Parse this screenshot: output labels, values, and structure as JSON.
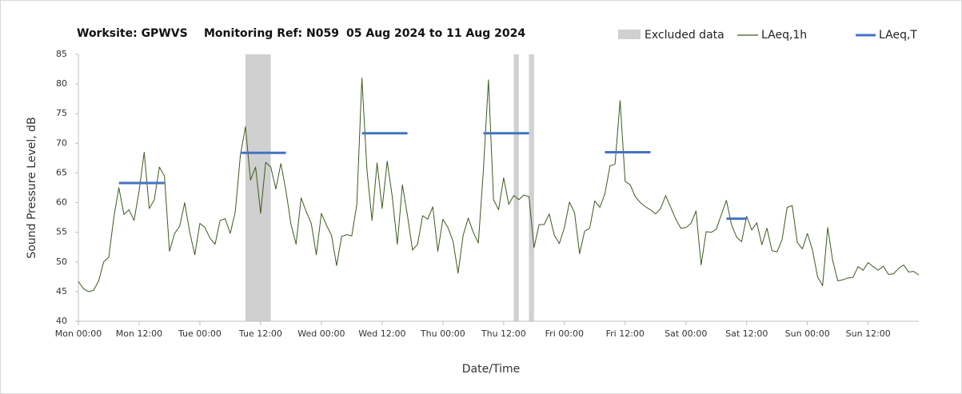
{
  "chart_data": {
    "type": "line",
    "title_parts": [
      "Worksite: GPWVS",
      "Monitoring Ref: N059",
      "05 Aug 2024 to 11 Aug 2024"
    ],
    "xlabel": "Date/Time",
    "ylabel": "Sound Pressure Level, dB",
    "xlim": [
      0,
      166
    ],
    "xticks": [
      {
        "value": 0,
        "label": "Mon 00:00"
      },
      {
        "value": 12,
        "label": "Mon 12:00"
      },
      {
        "value": 24,
        "label": "Tue 00:00"
      },
      {
        "value": 36,
        "label": "Tue 12:00"
      },
      {
        "value": 48,
        "label": "Wed 00:00"
      },
      {
        "value": 60,
        "label": "Wed 12:00"
      },
      {
        "value": 72,
        "label": "Thu 00:00"
      },
      {
        "value": 84,
        "label": "Thu 12:00"
      },
      {
        "value": 96,
        "label": "Fri 00:00"
      },
      {
        "value": 108,
        "label": "Fri 12:00"
      },
      {
        "value": 120,
        "label": "Sat 00:00"
      },
      {
        "value": 132,
        "label": "Sat 12:00"
      },
      {
        "value": 144,
        "label": "Sun 00:00"
      },
      {
        "value": 156,
        "label": "Sun 12:00"
      }
    ],
    "ylim": [
      40,
      85
    ],
    "yticks": [
      40,
      45,
      50,
      55,
      60,
      65,
      70,
      75,
      80,
      85
    ],
    "grid": false,
    "series": [
      {
        "name": "LAeq,1h",
        "color": "#3d5a1e",
        "x": [
          0,
          1,
          2,
          3,
          4,
          5,
          6,
          7,
          8,
          9,
          10,
          11,
          12,
          13,
          14,
          15,
          16,
          17,
          18,
          19,
          20,
          21,
          22,
          23,
          24,
          25,
          26,
          27,
          28,
          29,
          30,
          31,
          32,
          33,
          34,
          35,
          36,
          37,
          38,
          39,
          40,
          41,
          42,
          43,
          44,
          45,
          46,
          47,
          48,
          49,
          50,
          51,
          52,
          53,
          54,
          55,
          56,
          57,
          58,
          59,
          60,
          61,
          62,
          63,
          64,
          65,
          66,
          67,
          68,
          69,
          70,
          71,
          72,
          73,
          74,
          75,
          76,
          77,
          78,
          79,
          80,
          81,
          82,
          83,
          84,
          85,
          86,
          87,
          88,
          89,
          90,
          91,
          92,
          93,
          94,
          95,
          96,
          97,
          98,
          99,
          100,
          101,
          102,
          103,
          104,
          105,
          106,
          107,
          108,
          109,
          110,
          111,
          112,
          113,
          114,
          115,
          116,
          117,
          118,
          119,
          120,
          121,
          122,
          123,
          124,
          125,
          126,
          127,
          128,
          129,
          130,
          131,
          132,
          133,
          134,
          135,
          136,
          137,
          138,
          139,
          140,
          141,
          142,
          143,
          144,
          145,
          146,
          147,
          148,
          149,
          150,
          151,
          152,
          153,
          154,
          155,
          156,
          157,
          158,
          159,
          160,
          161,
          162,
          163,
          164,
          165,
          166
        ],
        "values": [
          46.7,
          45.5,
          45,
          45.2,
          46.8,
          50,
          50.8,
          57.5,
          62.5,
          58,
          58.8,
          57,
          62,
          68.5,
          59,
          60.5,
          66,
          64.5,
          51.8,
          54.8,
          56,
          60,
          55,
          51.2,
          56.5,
          55.8,
          54,
          53,
          57,
          57.3,
          54.8,
          58.5,
          68,
          72.8,
          63.8,
          66,
          58.2,
          66.8,
          66,
          62.3,
          66.6,
          62,
          56.3,
          53,
          60.8,
          58.5,
          56.5,
          51.2,
          58.2,
          56.2,
          54.5,
          49.4,
          54.3,
          54.6,
          54.4,
          59.7,
          81,
          65.5,
          57,
          66.7,
          59,
          67,
          61,
          53,
          63,
          57.8,
          52,
          53,
          57.8,
          57.2,
          59.3,
          51.8,
          57.2,
          55.8,
          53.5,
          48.1,
          54.5,
          57.4,
          55,
          53.2,
          65.5,
          80.7,
          60.5,
          58.8,
          64.2,
          59.7,
          61.2,
          60.5,
          61.3,
          61,
          52.4,
          56.3,
          56.3,
          58.1,
          54.5,
          53.1,
          55.8,
          60.1,
          58.3,
          51.4,
          55.2,
          55.7,
          60.3,
          59.2,
          61.5,
          66.2,
          66.5,
          77.2,
          63.6,
          63,
          61,
          60,
          59.3,
          58.8,
          58.1,
          59,
          61.2,
          59.2,
          57.2,
          55.7,
          55.8,
          56.5,
          58.6,
          49.5,
          55.1,
          55,
          55.5,
          58,
          60.4,
          56.3,
          54.2,
          53.4,
          57.7,
          55.4,
          56.6,
          52.9,
          55.7,
          51.9,
          51.7,
          53.8,
          59.2,
          59.5,
          53.3,
          52.2,
          54.8,
          52,
          47.5,
          46,
          55.8,
          50.2,
          46.8,
          47,
          47.3,
          47.4,
          49.2,
          48.6,
          49.9,
          49.2,
          48.6,
          49.3,
          47.9,
          48,
          48.9,
          49.5,
          48.3,
          48.4,
          47.8
        ]
      }
    ],
    "averages": {
      "name": "LAeq,T",
      "color": "#4472c4",
      "segments": [
        {
          "x": [
            8,
            17
          ],
          "value": 63.3
        },
        {
          "x": [
            32,
            41
          ],
          "value": 68.4
        },
        {
          "x": [
            56,
            65
          ],
          "value": 71.7
        },
        {
          "x": [
            80,
            89
          ],
          "value": 71.7
        },
        {
          "x": [
            104,
            113
          ],
          "value": 68.5
        },
        {
          "x": [
            128,
            132
          ],
          "value": 57.3
        }
      ]
    },
    "excluded": {
      "name": "Excluded data",
      "color": "#d0d0d0",
      "ranges": [
        [
          33,
          38
        ],
        [
          86,
          87
        ],
        [
          89,
          90
        ]
      ]
    }
  }
}
